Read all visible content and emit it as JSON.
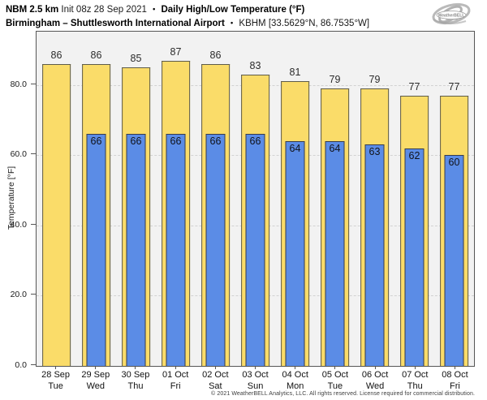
{
  "header": {
    "line1": {
      "model": "NBM 2.5 km",
      "init": "Init 08z 28 Sep 2021",
      "sep": "•",
      "product": "Daily High/Low Temperature (°F)"
    },
    "line2": {
      "station": "Birmingham – Shuttlesworth International Airport",
      "sep": "•",
      "station_id": "KBHM [33.5629°N, 86.7535°W]"
    },
    "logo_text": "WeatherBELL"
  },
  "chart_data": {
    "type": "bar",
    "title": "NBM 2.5 km Init 08z 28 Sep 2021 • Daily High/Low Temperature (°F) — Birmingham – Shuttlesworth International Airport • KBHM",
    "ylabel": "Temperature [°F]",
    "xlabel": "",
    "ylim": [
      0,
      95.2
    ],
    "yticks": [
      0,
      20,
      40,
      60,
      80
    ],
    "ytick_labels": [
      "0.0",
      "20.0",
      "40.0",
      "60.0",
      "80.0"
    ],
    "grid": "horizontal-dashed",
    "legend_position": "none",
    "categories": [
      {
        "date": "28 Sep",
        "day": "Tue"
      },
      {
        "date": "29 Sep",
        "day": "Wed"
      },
      {
        "date": "30 Sep",
        "day": "Thu"
      },
      {
        "date": "01 Oct",
        "day": "Fri"
      },
      {
        "date": "02 Oct",
        "day": "Sat"
      },
      {
        "date": "03 Oct",
        "day": "Sun"
      },
      {
        "date": "04 Oct",
        "day": "Mon"
      },
      {
        "date": "05 Oct",
        "day": "Tue"
      },
      {
        "date": "06 Oct",
        "day": "Wed"
      },
      {
        "date": "07 Oct",
        "day": "Thu"
      },
      {
        "date": "08 Oct",
        "day": "Fri"
      }
    ],
    "series": [
      {
        "name": "Daily High",
        "color": "#fadc69",
        "border": "#5d5b49",
        "values": [
          86,
          86,
          85,
          87,
          86,
          83,
          81,
          79,
          79,
          77,
          77
        ]
      },
      {
        "name": "Daily Low",
        "color": "#5b8ce6",
        "border": "#363c4c",
        "values": [
          null,
          66,
          66,
          66,
          66,
          66,
          64,
          64,
          63,
          62,
          60
        ]
      }
    ]
  },
  "colors": {
    "plot_bg": "#f2f2f2",
    "gridline": "#d2d2d2",
    "axis": "#565656",
    "high_fill": "#fadc69",
    "low_fill": "#5b8ce6"
  },
  "footer": {
    "copyright": "© 2021 WeatherBELL Analytics, LLC. All rights reserved. License required for commercial distribution."
  }
}
